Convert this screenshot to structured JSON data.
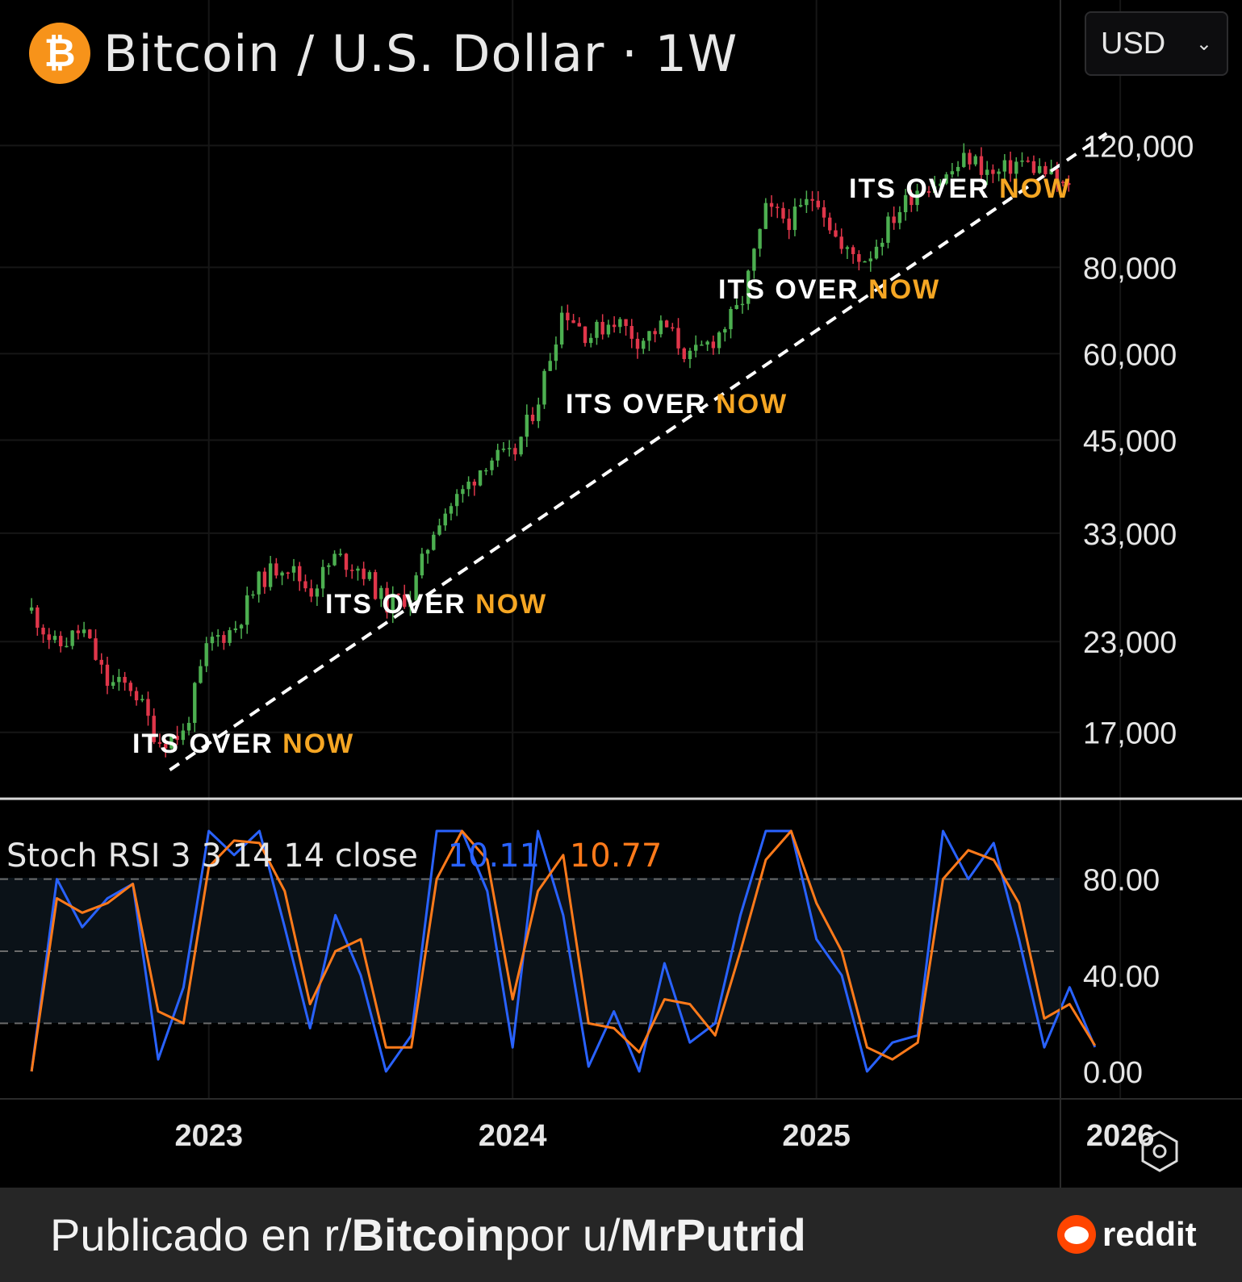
{
  "header": {
    "symbol_icon": "bitcoin-icon",
    "title": "Bitcoin / U.S. Dollar · 1W",
    "currency": "USD"
  },
  "colors": {
    "background": "#000000",
    "up_candle": "#4caf50",
    "down_candle": "#e0364a",
    "annotation_white": "#ffffff",
    "annotation_orange": "#f5a623",
    "stoch_k": "#2962ff",
    "stoch_d": "#ff7a1a",
    "footer_bg": "#262626",
    "reddit_orange": "#ff4500"
  },
  "annotations": [
    {
      "text": "ITS OVER",
      "highlight": "NOW"
    },
    {
      "text": "ITS OVER",
      "highlight": "NOW"
    },
    {
      "text": "ITS OVER",
      "highlight": "NOW"
    },
    {
      "text": "ITS OVER",
      "highlight": "NOW"
    },
    {
      "text": "ITS OVER",
      "highlight": "NOW"
    }
  ],
  "indicator": {
    "label": "Stoch RSI 3 3 14 14 close",
    "k_value": "10.11",
    "d_value": "10.77"
  },
  "footer": {
    "prefix": "Publicado en r/",
    "subreddit": "Bitcoin",
    "middle": " por u/",
    "user": "MrPutrid",
    "brand": "reddit"
  },
  "chart_data": [
    {
      "type": "candlestick",
      "title": "Bitcoin / U.S. Dollar · 1W",
      "x_ticks": [
        "2023",
        "2024",
        "2025",
        "2026"
      ],
      "y_ticks": [
        "120,000",
        "80,000",
        "60,000",
        "45,000",
        "33,000",
        "23,000",
        "17,000"
      ],
      "y_scale": "log",
      "xlim": [
        "2022-03",
        "2026-06"
      ],
      "ylim": [
        14000,
        145000
      ],
      "price_path": [
        [
          "2022-06",
          25500
        ],
        [
          "2022-07",
          22500
        ],
        [
          "2022-08",
          24000
        ],
        [
          "2022-09",
          20000
        ],
        [
          "2022-10",
          19800
        ],
        [
          "2022-11",
          16500
        ],
        [
          "2022-12",
          16900
        ],
        [
          "2023-01",
          23000
        ],
        [
          "2023-02",
          24000
        ],
        [
          "2023-03",
          28200
        ],
        [
          "2023-04",
          30000
        ],
        [
          "2023-05",
          27200
        ],
        [
          "2023-06",
          30500
        ],
        [
          "2023-07",
          29400
        ],
        [
          "2023-08",
          26000
        ],
        [
          "2023-09",
          26900
        ],
        [
          "2023-10",
          34500
        ],
        [
          "2023-11",
          37700
        ],
        [
          "2023-12",
          42300
        ],
        [
          "2024-01",
          42500
        ],
        [
          "2024-02",
          51500
        ],
        [
          "2024-03",
          70000
        ],
        [
          "2024-04",
          63500
        ],
        [
          "2024-05",
          67500
        ],
        [
          "2024-06",
          62700
        ],
        [
          "2024-07",
          66000
        ],
        [
          "2024-08",
          59000
        ],
        [
          "2024-09",
          63300
        ],
        [
          "2024-10",
          70200
        ],
        [
          "2024-11",
          96500
        ],
        [
          "2024-12",
          93400
        ],
        [
          "2025-01",
          102400
        ],
        [
          "2025-02",
          84400
        ],
        [
          "2025-03",
          82500
        ],
        [
          "2025-04",
          94200
        ],
        [
          "2025-05",
          104600
        ],
        [
          "2025-06",
          107100
        ],
        [
          "2025-07",
          115700
        ],
        [
          "2025-08",
          108200
        ],
        [
          "2025-09",
          114000
        ],
        [
          "2025-10",
          110000
        ],
        [
          "2025-11",
          103000
        ]
      ],
      "trendline": [
        [
          "2022-11-15",
          15000
        ],
        [
          "2025-12-15",
          125000
        ]
      ]
    },
    {
      "type": "line",
      "title": "Stoch RSI 3 3 14 14 close",
      "y_ticks": [
        "80.00",
        "40.00",
        "0.00"
      ],
      "ylim": [
        0,
        100
      ],
      "bands": [
        20,
        50,
        80
      ],
      "series": [
        {
          "name": "K",
          "values": [
            [
              "2022-06",
              0
            ],
            [
              "2022-07",
              80
            ],
            [
              "2022-08",
              60
            ],
            [
              "2022-09",
              72
            ],
            [
              "2022-10",
              78
            ],
            [
              "2022-11",
              5
            ],
            [
              "2022-12",
              35
            ],
            [
              "2023-01",
              100
            ],
            [
              "2023-02",
              90
            ],
            [
              "2023-03",
              100
            ],
            [
              "2023-04",
              60
            ],
            [
              "2023-05",
              18
            ],
            [
              "2023-06",
              65
            ],
            [
              "2023-07",
              40
            ],
            [
              "2023-08",
              0
            ],
            [
              "2023-09",
              15
            ],
            [
              "2023-10",
              100
            ],
            [
              "2023-11",
              100
            ],
            [
              "2023-12",
              75
            ],
            [
              "2024-01",
              10
            ],
            [
              "2024-02",
              100
            ],
            [
              "2024-03",
              65
            ],
            [
              "2024-04",
              2
            ],
            [
              "2024-05",
              25
            ],
            [
              "2024-06",
              0
            ],
            [
              "2024-07",
              45
            ],
            [
              "2024-08",
              12
            ],
            [
              "2024-09",
              20
            ],
            [
              "2024-10",
              65
            ],
            [
              "2024-11",
              100
            ],
            [
              "2024-12",
              100
            ],
            [
              "2025-01",
              55
            ],
            [
              "2025-02",
              40
            ],
            [
              "2025-03",
              0
            ],
            [
              "2025-04",
              12
            ],
            [
              "2025-05",
              15
            ],
            [
              "2025-06",
              100
            ],
            [
              "2025-07",
              80
            ],
            [
              "2025-08",
              95
            ],
            [
              "2025-09",
              55
            ],
            [
              "2025-10",
              10
            ],
            [
              "2025-11",
              35
            ],
            [
              "2025-12",
              10.11
            ]
          ]
        },
        {
          "name": "D",
          "values": [
            [
              "2022-06",
              0
            ],
            [
              "2022-07",
              72
            ],
            [
              "2022-08",
              66
            ],
            [
              "2022-09",
              70
            ],
            [
              "2022-10",
              78
            ],
            [
              "2022-11",
              25
            ],
            [
              "2022-12",
              20
            ],
            [
              "2023-01",
              85
            ],
            [
              "2023-02",
              96
            ],
            [
              "2023-03",
              95
            ],
            [
              "2023-04",
              75
            ],
            [
              "2023-05",
              28
            ],
            [
              "2023-06",
              50
            ],
            [
              "2023-07",
              55
            ],
            [
              "2023-08",
              10
            ],
            [
              "2023-09",
              10
            ],
            [
              "2023-10",
              80
            ],
            [
              "2023-11",
              100
            ],
            [
              "2023-12",
              88
            ],
            [
              "2024-01",
              30
            ],
            [
              "2024-02",
              75
            ],
            [
              "2024-03",
              90
            ],
            [
              "2024-04",
              20
            ],
            [
              "2024-05",
              18
            ],
            [
              "2024-06",
              8
            ],
            [
              "2024-07",
              30
            ],
            [
              "2024-08",
              28
            ],
            [
              "2024-09",
              15
            ],
            [
              "2024-10",
              50
            ],
            [
              "2024-11",
              88
            ],
            [
              "2024-12",
              100
            ],
            [
              "2025-01",
              70
            ],
            [
              "2025-02",
              50
            ],
            [
              "2025-03",
              10
            ],
            [
              "2025-04",
              5
            ],
            [
              "2025-05",
              12
            ],
            [
              "2025-06",
              80
            ],
            [
              "2025-07",
              92
            ],
            [
              "2025-08",
              88
            ],
            [
              "2025-09",
              70
            ],
            [
              "2025-10",
              22
            ],
            [
              "2025-11",
              28
            ],
            [
              "2025-12",
              10.77
            ]
          ]
        }
      ]
    }
  ]
}
